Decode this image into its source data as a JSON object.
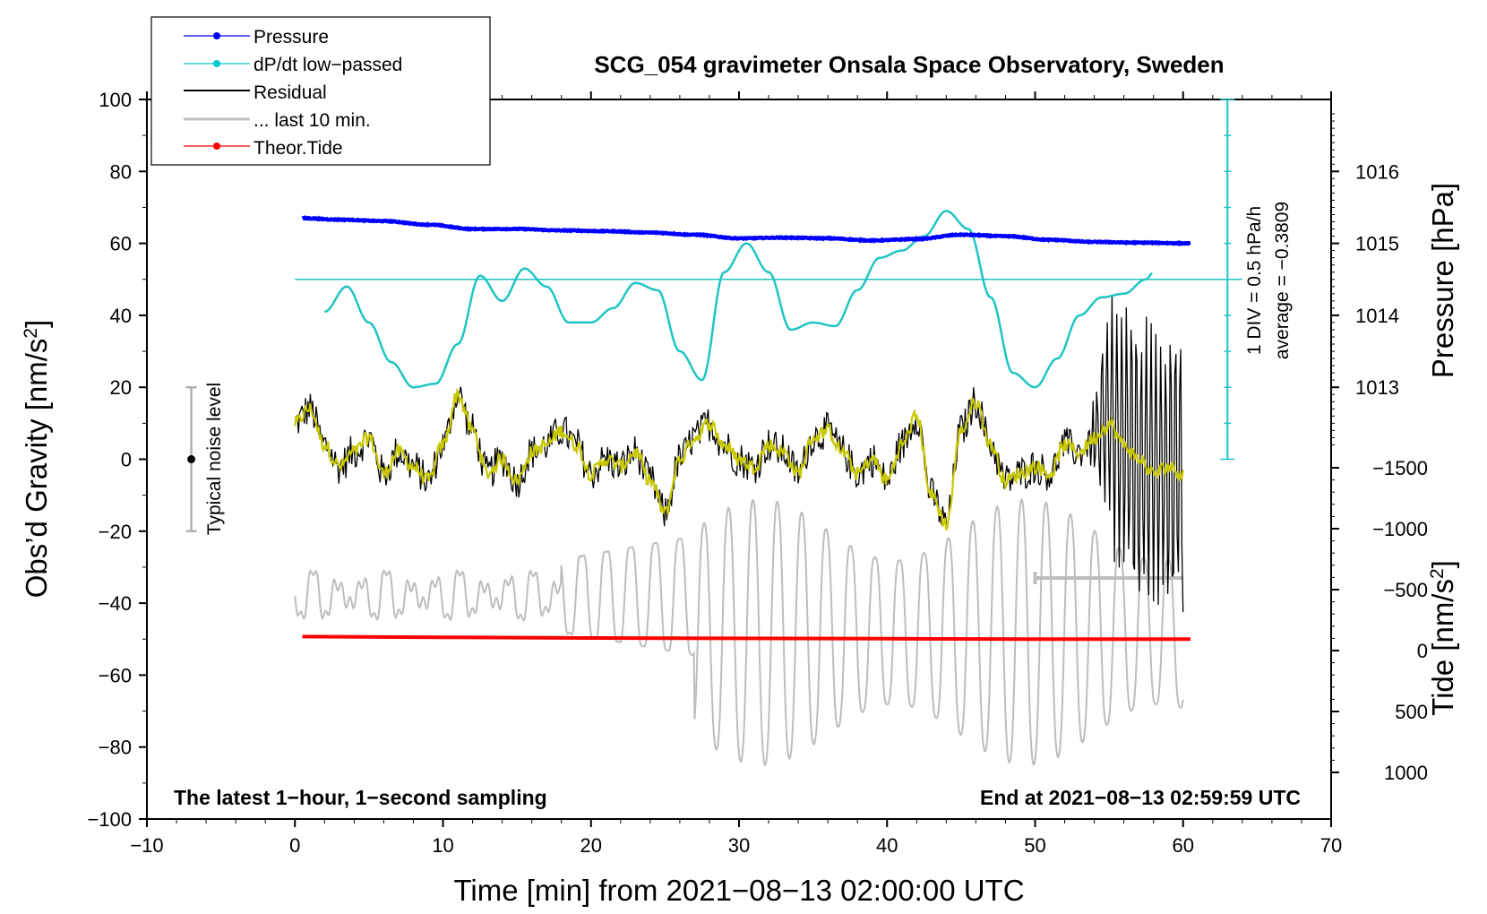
{
  "chart_data": {
    "type": "line",
    "title": "SCG_054 gravimeter Onsala Space Observatory, Sweden",
    "xlabel": "Time [min] from 2021−08−13 02:00:00 UTC",
    "ylabel_left": "Obs’d Gravity [nm/s",
    "ylabel_left_sup": "2",
    "ylabel_left_close": "]",
    "ylabel_pressure": "Pressure [hPa]",
    "ylabel_tide": "Tide [nm/s",
    "ylabel_tide_sup": "2",
    "ylabel_tide_close": "]",
    "xlim": [
      -10,
      70
    ],
    "ylim": [
      -100,
      100
    ],
    "x_ticks": [
      -10,
      0,
      10,
      20,
      30,
      40,
      50,
      60,
      70
    ],
    "x_tick_labels": [
      "−10",
      "0",
      "10",
      "20",
      "30",
      "40",
      "50",
      "60",
      "70"
    ],
    "y_ticks": [
      100,
      80,
      60,
      40,
      20,
      0,
      -20,
      -40,
      -60,
      -80,
      -100
    ],
    "y_tick_labels": [
      "100",
      "80",
      "60",
      "40",
      "20",
      "0",
      "−20",
      "−40",
      "−60",
      "−80",
      "−100"
    ],
    "pressure_ticks": [
      1016,
      1015,
      1014,
      1013
    ],
    "pressure_tick_labels": [
      "1016",
      "1015",
      "1014",
      "1013"
    ],
    "pressure_tick_gravity_equiv": [
      80,
      60,
      40,
      20
    ],
    "tide_ticks": [
      1000,
      500,
      0,
      -500,
      -1000,
      -1500
    ],
    "tide_tick_labels": [
      "1000",
      "500",
      "0",
      "−500",
      "−1000",
      "−1500"
    ],
    "legend": [
      {
        "label": "Pressure",
        "color": "#0000ff",
        "marker": true
      },
      {
        "label": "dP/dt low−passed",
        "color": "#00c8c8",
        "marker": true
      },
      {
        "label": "Residual",
        "color": "#000000",
        "marker": false
      },
      {
        "label": "... last 10 min.",
        "color": "#c0c0c0",
        "marker": false
      },
      {
        "label": "Theor.Tide",
        "color": "#ff0000",
        "marker": true
      }
    ],
    "colors": {
      "pressure": "#0000ff",
      "dpdt": "#1fc4c4",
      "residual": "#000000",
      "residual_smooth": "#c8c800",
      "last10": "#bdbdbd",
      "tide": "#ff0000"
    },
    "series": [
      {
        "name": "Pressure",
        "unit": "hPa",
        "x": [
          0.5,
          3,
          6,
          9,
          12,
          15,
          18,
          21,
          24,
          27,
          30,
          33,
          36,
          39,
          42,
          45,
          48,
          51,
          54,
          57,
          60.5
        ],
        "values": [
          1015.35,
          1015.33,
          1015.31,
          1015.26,
          1015.2,
          1015.2,
          1015.18,
          1015.17,
          1015.15,
          1015.12,
          1015.07,
          1015.08,
          1015.07,
          1015.04,
          1015.06,
          1015.12,
          1015.1,
          1015.05,
          1015.02,
          1015.01,
          1015.0
        ]
      },
      {
        "name": "dP/dt low−passed",
        "unit": "gravity-axis equivalent",
        "x": [
          2,
          3.5,
          5,
          6.5,
          8,
          9.5,
          11,
          12.5,
          14,
          15.5,
          17,
          18.5,
          20,
          21.5,
          23,
          24.5,
          26,
          27.5,
          29,
          30.5,
          32,
          33.5,
          35,
          36.5,
          38,
          39.5,
          41,
          42.5,
          44,
          45.5,
          47,
          48.5,
          50,
          51.5,
          53,
          54.5,
          56,
          57.5,
          58
        ],
        "values": [
          41,
          48,
          38,
          27,
          20,
          21,
          32,
          51,
          44,
          53,
          48,
          38,
          38,
          42,
          49,
          47,
          30,
          22,
          52,
          60,
          52,
          36,
          38,
          37,
          47,
          56,
          58,
          62,
          69,
          64,
          45,
          24,
          20,
          28,
          40,
          45,
          46,
          50,
          52
        ]
      },
      {
        "name": "Residual",
        "unit": "nm/s2",
        "x": [
          0,
          1,
          2,
          3,
          4,
          5,
          6,
          7,
          8,
          9,
          10,
          11,
          12,
          13,
          14,
          15,
          16,
          17,
          18,
          19,
          20,
          21,
          22,
          23,
          24,
          25,
          26,
          27,
          28,
          29,
          30,
          31,
          32,
          33,
          34,
          35,
          36,
          37,
          38,
          39,
          40,
          41,
          42,
          43,
          44,
          45,
          46,
          47,
          48,
          49,
          50,
          51,
          52,
          53,
          54,
          55,
          56,
          57,
          58,
          59,
          60
        ],
        "values": [
          10,
          14,
          4,
          -2,
          2,
          6,
          -4,
          2,
          -2,
          -6,
          4,
          18,
          8,
          -4,
          0,
          -6,
          2,
          4,
          8,
          4,
          -4,
          0,
          -2,
          2,
          -6,
          -15,
          0,
          6,
          10,
          4,
          0,
          -2,
          4,
          2,
          -4,
          6,
          8,
          2,
          -4,
          0,
          -6,
          4,
          12,
          -10,
          -18,
          8,
          16,
          4,
          -6,
          -4,
          -2,
          -4,
          4,
          2,
          6,
          10,
          4,
          0,
          -4,
          -2,
          -4
        ]
      },
      {
        "name": "... last 10 min.",
        "unit": "nm/s2",
        "x": [
          50,
          60
        ],
        "values": [
          -33,
          -33
        ]
      },
      {
        "name": "Theor.Tide",
        "unit": "nm/s2",
        "x": [
          0.5,
          10,
          20,
          30,
          40,
          50,
          60.5
        ],
        "values": [
          -49.3,
          -49.5,
          -49.7,
          -49.8,
          -49.9,
          -50.0,
          -50.0
        ]
      }
    ],
    "noise_level": {
      "label": "Typical noise level",
      "x": -7,
      "center": 0,
      "range": [
        -20,
        20
      ]
    },
    "dpdt_scale": {
      "text_div": "1 DIV = 0.5 hPa/h",
      "text_avg": "average = −0.3809",
      "x": 63,
      "range": [
        0,
        100
      ],
      "reference_level": 50
    },
    "annotations": {
      "bottom_left": "The latest 1−hour, 1−second sampling",
      "bottom_right": "End at 2021−08−13 02:59:59 UTC"
    }
  }
}
